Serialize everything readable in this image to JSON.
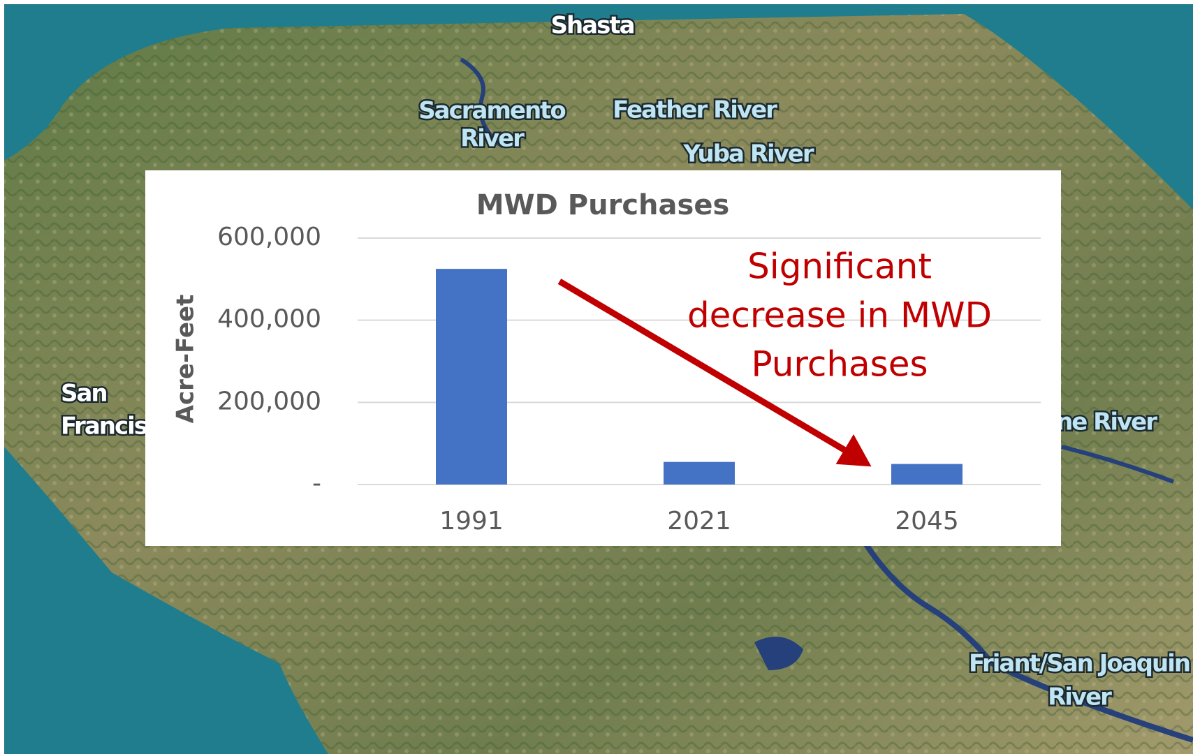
{
  "map": {
    "labels": [
      "Shasta",
      "Sacramento",
      "River",
      "Feather River",
      "Yuba River",
      "San",
      "Francisco",
      "Tuolumne River",
      "Friant/San Joaquin",
      "River"
    ]
  },
  "chart_data": {
    "type": "bar",
    "title": "MWD Purchases",
    "y_label": "Acre-Feet",
    "categories": [
      "1991",
      "2021",
      "2045"
    ],
    "values": [
      525000,
      55000,
      50000
    ],
    "color": "#4472c4",
    "ylim": [
      0,
      600000
    ],
    "yticks": [
      {
        "value": 0,
        "label": "-"
      },
      {
        "value": 200000,
        "label": "200,000"
      },
      {
        "value": 400000,
        "label": "400,000"
      },
      {
        "value": 600000,
        "label": "600,000"
      }
    ],
    "grid": true,
    "annotation": {
      "lines": [
        "Significant",
        "decrease in MWD",
        "Purchases"
      ],
      "color": "#c00000"
    }
  }
}
